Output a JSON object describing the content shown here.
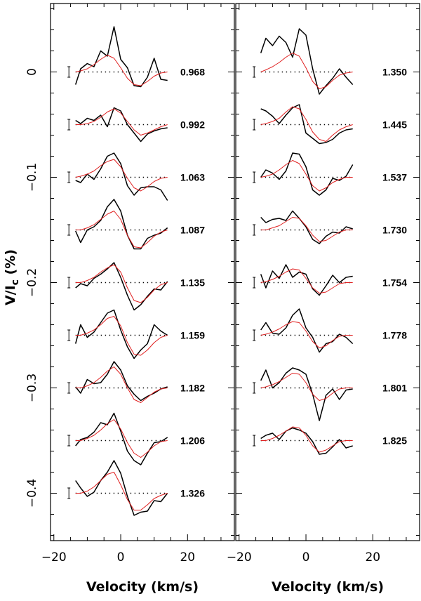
{
  "chart_data": {
    "type": "line",
    "title": "",
    "xlabel": "Velocity (km/s)",
    "ylabel": "V/Ic (%)",
    "ylabel_main": "V/I",
    "ylabel_sub": "c",
    "ylabel_unit": "(%)",
    "xlim": [
      -21,
      34
    ],
    "ylim": [
      -0.445,
      0.065
    ],
    "xticks": [
      -20,
      0,
      20
    ],
    "xticklabels": [
      "−20",
      "0",
      "20"
    ],
    "yticks": [
      0,
      -0.1,
      -0.2,
      -0.3,
      -0.4
    ],
    "yticklabels": [
      "0",
      "−0.1",
      "−0.2",
      "−0.3",
      "−0.4"
    ],
    "offset_step": -0.05,
    "errorbar_x": -15.5,
    "errorbar_halfwidth": 0.005,
    "velocity": [
      -13.5,
      -12,
      -10,
      -8,
      -6,
      -4,
      -2,
      0,
      2,
      4,
      6,
      8,
      10,
      12,
      14
    ],
    "panels": [
      {
        "name": "left",
        "series": [
          {
            "phase": "0.968",
            "offset": 0,
            "observed": [
              -0.012,
              0.003,
              0.008,
              0.005,
              0.02,
              0.015,
              0.043,
              0.012,
              0.004,
              -0.013,
              -0.014,
              -0.005,
              0.013,
              -0.007,
              -0.008
            ],
            "model": [
              0.0,
              0.001,
              0.003,
              0.007,
              0.012,
              0.016,
              0.013,
              0.004,
              -0.006,
              -0.012,
              -0.013,
              -0.009,
              -0.004,
              -0.001,
              0.0
            ]
          },
          {
            "phase": "0.992",
            "offset": -0.05,
            "observed": [
              -0.046,
              -0.049,
              -0.044,
              -0.046,
              -0.041,
              -0.052,
              -0.034,
              -0.037,
              -0.05,
              -0.058,
              -0.066,
              -0.059,
              -0.056,
              -0.054,
              -0.053
            ],
            "model": [
              -0.05,
              -0.05,
              -0.049,
              -0.047,
              -0.043,
              -0.038,
              -0.035,
              -0.039,
              -0.047,
              -0.055,
              -0.06,
              -0.058,
              -0.055,
              -0.052,
              -0.05
            ]
          },
          {
            "phase": "1.063",
            "offset": -0.1,
            "observed": [
              -0.103,
              -0.105,
              -0.097,
              -0.102,
              -0.092,
              -0.08,
              -0.077,
              -0.087,
              -0.108,
              -0.117,
              -0.11,
              -0.109,
              -0.109,
              -0.112,
              -0.122
            ],
            "model": [
              -0.1,
              -0.099,
              -0.097,
              -0.094,
              -0.089,
              -0.085,
              -0.083,
              -0.09,
              -0.101,
              -0.11,
              -0.113,
              -0.109,
              -0.104,
              -0.101,
              -0.1
            ]
          },
          {
            "phase": "1.087",
            "offset": -0.15,
            "observed": [
              -0.151,
              -0.162,
              -0.15,
              -0.147,
              -0.141,
              -0.128,
              -0.121,
              -0.132,
              -0.155,
              -0.168,
              -0.168,
              -0.158,
              -0.155,
              -0.153,
              -0.148
            ],
            "model": [
              -0.15,
              -0.15,
              -0.148,
              -0.145,
              -0.14,
              -0.135,
              -0.132,
              -0.14,
              -0.155,
              -0.166,
              -0.167,
              -0.162,
              -0.156,
              -0.152,
              -0.15
            ]
          },
          {
            "phase": "1.135",
            "offset": -0.2,
            "observed": [
              -0.205,
              -0.201,
              -0.203,
              -0.196,
              -0.192,
              -0.187,
              -0.181,
              -0.195,
              -0.212,
              -0.226,
              -0.221,
              -0.213,
              -0.206,
              -0.207,
              -0.199
            ],
            "model": [
              -0.2,
              -0.2,
              -0.198,
              -0.195,
              -0.19,
              -0.186,
              -0.183,
              -0.19,
              -0.205,
              -0.217,
              -0.219,
              -0.214,
              -0.207,
              -0.202,
              -0.2
            ]
          },
          {
            "phase": "1.159",
            "offset": -0.25,
            "observed": [
              -0.258,
              -0.24,
              -0.252,
              -0.247,
              -0.238,
              -0.229,
              -0.226,
              -0.245,
              -0.261,
              -0.272,
              -0.264,
              -0.258,
              -0.24,
              -0.246,
              -0.25
            ],
            "model": [
              -0.25,
              -0.25,
              -0.248,
              -0.245,
              -0.24,
              -0.234,
              -0.232,
              -0.241,
              -0.257,
              -0.268,
              -0.269,
              -0.264,
              -0.257,
              -0.252,
              -0.25
            ]
          },
          {
            "phase": "1.182",
            "offset": -0.3,
            "observed": [
              -0.299,
              -0.305,
              -0.292,
              -0.296,
              -0.295,
              -0.287,
              -0.275,
              -0.283,
              -0.298,
              -0.306,
              -0.312,
              -0.308,
              -0.305,
              -0.301,
              -0.299
            ],
            "model": [
              -0.3,
              -0.3,
              -0.298,
              -0.295,
              -0.29,
              -0.284,
              -0.28,
              -0.287,
              -0.3,
              -0.311,
              -0.314,
              -0.309,
              -0.304,
              -0.301,
              -0.3
            ]
          },
          {
            "phase": "1.206",
            "offset": -0.35,
            "observed": [
              -0.355,
              -0.349,
              -0.347,
              -0.342,
              -0.333,
              -0.335,
              -0.324,
              -0.341,
              -0.36,
              -0.369,
              -0.373,
              -0.362,
              -0.352,
              -0.351,
              -0.347
            ],
            "model": [
              -0.35,
              -0.35,
              -0.348,
              -0.345,
              -0.34,
              -0.334,
              -0.33,
              -0.339,
              -0.352,
              -0.362,
              -0.366,
              -0.361,
              -0.355,
              -0.351,
              -0.35
            ]
          },
          {
            "phase": "1.326",
            "offset": -0.4,
            "observed": [
              -0.388,
              -0.395,
              -0.403,
              -0.399,
              -0.388,
              -0.38,
              -0.369,
              -0.381,
              -0.403,
              -0.421,
              -0.418,
              -0.417,
              -0.407,
              -0.408,
              -0.4
            ],
            "model": [
              -0.4,
              -0.4,
              -0.398,
              -0.394,
              -0.388,
              -0.382,
              -0.38,
              -0.392,
              -0.406,
              -0.416,
              -0.416,
              -0.411,
              -0.405,
              -0.402,
              -0.4
            ]
          }
        ]
      },
      {
        "name": "right",
        "series": [
          {
            "phase": "1.350",
            "offset": 0,
            "observed": [
              0.018,
              0.032,
              0.025,
              0.034,
              0.028,
              0.014,
              0.041,
              0.035,
              0.003,
              -0.021,
              -0.013,
              -0.006,
              0.003,
              -0.005,
              -0.012
            ],
            "model": [
              0.0,
              0.002,
              0.005,
              0.009,
              0.014,
              0.018,
              0.015,
              0.004,
              -0.009,
              -0.016,
              -0.014,
              -0.008,
              -0.003,
              -0.001,
              0.0
            ]
          },
          {
            "phase": "1.445",
            "offset": -0.05,
            "observed": [
              -0.035,
              -0.037,
              -0.042,
              -0.049,
              -0.041,
              -0.034,
              -0.031,
              -0.058,
              -0.063,
              -0.068,
              -0.067,
              -0.064,
              -0.058,
              -0.055,
              -0.054
            ],
            "model": [
              -0.05,
              -0.049,
              -0.047,
              -0.044,
              -0.038,
              -0.033,
              -0.035,
              -0.045,
              -0.057,
              -0.064,
              -0.066,
              -0.06,
              -0.055,
              -0.052,
              -0.05
            ]
          },
          {
            "phase": "1.537",
            "offset": -0.1,
            "observed": [
              -0.1,
              -0.093,
              -0.096,
              -0.102,
              -0.094,
              -0.077,
              -0.078,
              -0.09,
              -0.112,
              -0.117,
              -0.112,
              -0.101,
              -0.103,
              -0.099,
              -0.088
            ],
            "model": [
              -0.1,
              -0.099,
              -0.097,
              -0.093,
              -0.088,
              -0.084,
              -0.087,
              -0.097,
              -0.108,
              -0.113,
              -0.11,
              -0.105,
              -0.102,
              -0.1,
              -0.1
            ]
          },
          {
            "phase": "1.730",
            "offset": -0.15,
            "observed": [
              -0.138,
              -0.143,
              -0.14,
              -0.139,
              -0.141,
              -0.132,
              -0.139,
              -0.147,
              -0.159,
              -0.163,
              -0.156,
              -0.152,
              -0.153,
              -0.147,
              -0.149
            ],
            "model": [
              -0.15,
              -0.15,
              -0.148,
              -0.146,
              -0.142,
              -0.138,
              -0.139,
              -0.146,
              -0.155,
              -0.161,
              -0.16,
              -0.156,
              -0.152,
              -0.15,
              -0.15
            ]
          },
          {
            "phase": "1.754",
            "offset": -0.2,
            "observed": [
              -0.192,
              -0.205,
              -0.189,
              -0.196,
              -0.183,
              -0.195,
              -0.19,
              -0.192,
              -0.206,
              -0.212,
              -0.203,
              -0.193,
              -0.2,
              -0.195,
              -0.194
            ],
            "model": [
              -0.2,
              -0.199,
              -0.197,
              -0.194,
              -0.19,
              -0.187,
              -0.188,
              -0.196,
              -0.205,
              -0.21,
              -0.209,
              -0.205,
              -0.201,
              -0.2,
              -0.2
            ]
          },
          {
            "phase": "1.778",
            "offset": -0.25,
            "observed": [
              -0.245,
              -0.238,
              -0.248,
              -0.249,
              -0.243,
              -0.231,
              -0.225,
              -0.243,
              -0.252,
              -0.266,
              -0.258,
              -0.256,
              -0.249,
              -0.252,
              -0.258
            ],
            "model": [
              -0.25,
              -0.249,
              -0.247,
              -0.244,
              -0.24,
              -0.237,
              -0.238,
              -0.246,
              -0.256,
              -0.262,
              -0.26,
              -0.255,
              -0.251,
              -0.25,
              -0.25
            ]
          },
          {
            "phase": "1.801",
            "offset": -0.3,
            "observed": [
              -0.293,
              -0.283,
              -0.3,
              -0.295,
              -0.286,
              -0.281,
              -0.283,
              -0.287,
              -0.306,
              -0.331,
              -0.307,
              -0.301,
              -0.311,
              -0.302,
              -0.301
            ],
            "model": [
              -0.3,
              -0.299,
              -0.297,
              -0.294,
              -0.29,
              -0.286,
              -0.287,
              -0.295,
              -0.306,
              -0.312,
              -0.31,
              -0.305,
              -0.301,
              -0.3,
              -0.3
            ]
          },
          {
            "phase": "1.825",
            "offset": -0.35,
            "observed": [
              -0.348,
              -0.345,
              -0.343,
              -0.349,
              -0.341,
              -0.338,
              -0.34,
              -0.343,
              -0.351,
              -0.363,
              -0.362,
              -0.356,
              -0.349,
              -0.357,
              -0.355
            ],
            "model": [
              -0.35,
              -0.35,
              -0.348,
              -0.345,
              -0.341,
              -0.337,
              -0.338,
              -0.345,
              -0.355,
              -0.361,
              -0.359,
              -0.355,
              -0.351,
              -0.35,
              -0.35
            ]
          }
        ]
      }
    ]
  }
}
